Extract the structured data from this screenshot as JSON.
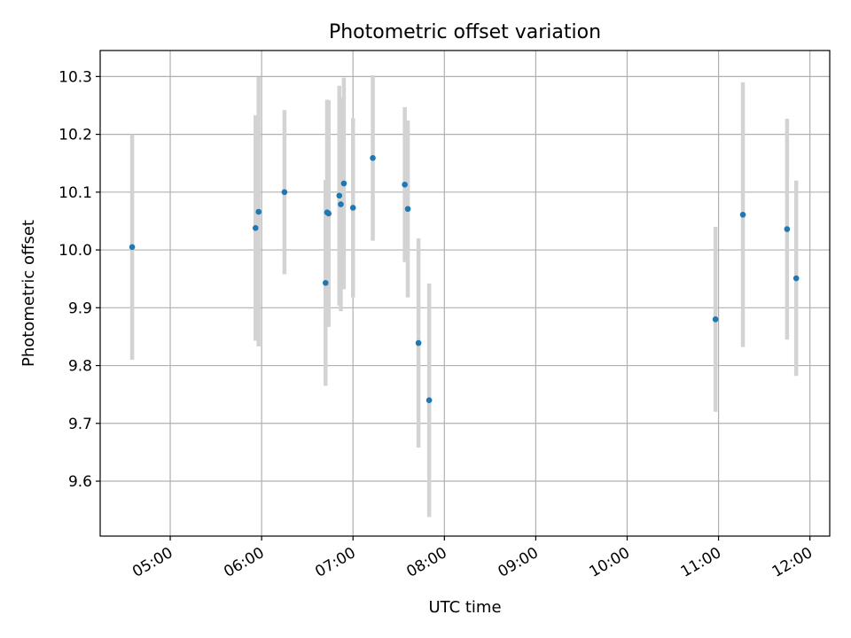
{
  "chart_data": {
    "type": "scatter",
    "title": "Photometric offset variation",
    "xlabel": "UTC time",
    "ylabel": "Photometric offset",
    "x_axis": "time of day (HH:MM, UTC)",
    "xlim": [
      "04:14",
      "12:13"
    ],
    "ylim": [
      9.505,
      10.345
    ],
    "x_ticks": [
      "05:00",
      "06:00",
      "07:00",
      "08:00",
      "09:00",
      "10:00",
      "11:00",
      "12:00"
    ],
    "y_ticks": [
      9.6,
      9.7,
      9.8,
      9.9,
      10.0,
      10.1,
      10.2,
      10.3
    ],
    "y_tick_labels": [
      "9.6",
      "9.7",
      "9.8",
      "9.9",
      "10.0",
      "10.1",
      "10.2",
      "10.3"
    ],
    "grid": true,
    "marker_color": "#1f77b4",
    "errorbar_color": "#d3d3d3",
    "points": [
      {
        "x": "04:35",
        "y": 10.005,
        "err": 0.195
      },
      {
        "x": "05:56",
        "y": 10.038,
        "err": 0.195
      },
      {
        "x": "05:58",
        "y": 10.066,
        "err": 0.233
      },
      {
        "x": "06:15",
        "y": 10.1,
        "err": 0.142
      },
      {
        "x": "06:42",
        "y": 9.943,
        "err": 0.178
      },
      {
        "x": "06:43",
        "y": 10.065,
        "err": 0.195
      },
      {
        "x": "06:44",
        "y": 10.063,
        "err": 0.196
      },
      {
        "x": "06:51",
        "y": 10.094,
        "err": 0.19
      },
      {
        "x": "06:52",
        "y": 10.079,
        "err": 0.185
      },
      {
        "x": "06:54",
        "y": 10.115,
        "err": 0.183
      },
      {
        "x": "07:00",
        "y": 10.073,
        "err": 0.155
      },
      {
        "x": "07:13",
        "y": 10.159,
        "err": 0.143
      },
      {
        "x": "07:34",
        "y": 10.113,
        "err": 0.134
      },
      {
        "x": "07:36",
        "y": 10.071,
        "err": 0.153
      },
      {
        "x": "07:43",
        "y": 9.839,
        "err": 0.181
      },
      {
        "x": "07:50",
        "y": 9.74,
        "err": 0.202
      },
      {
        "x": "10:58",
        "y": 9.88,
        "err": 0.16
      },
      {
        "x": "11:16",
        "y": 10.061,
        "err": 0.229
      },
      {
        "x": "11:45",
        "y": 10.036,
        "err": 0.191
      },
      {
        "x": "11:51",
        "y": 9.951,
        "err": 0.169
      }
    ]
  }
}
